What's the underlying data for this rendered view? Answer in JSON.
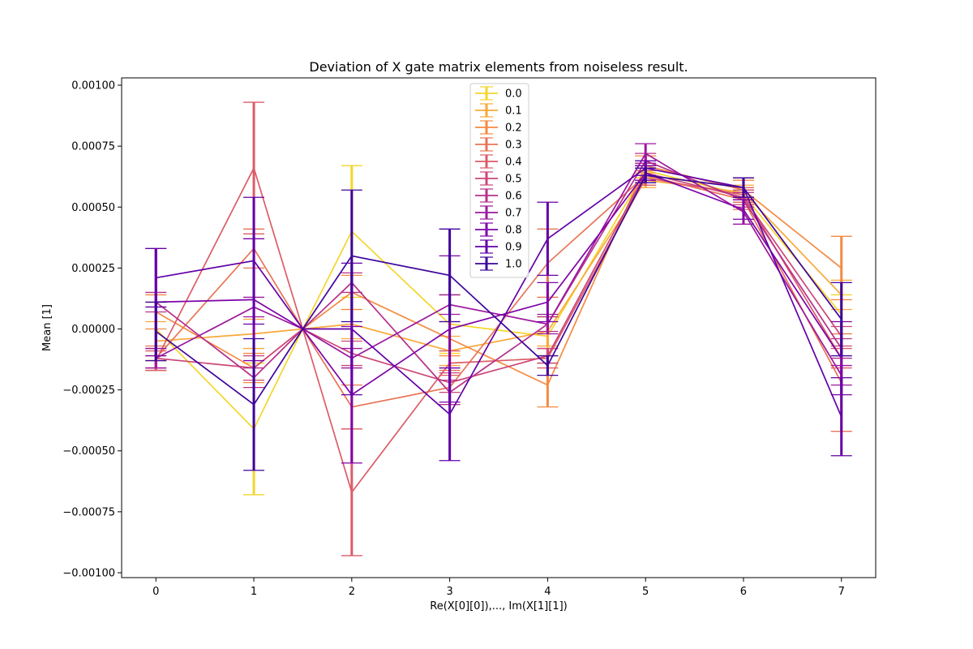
{
  "chart_data": {
    "type": "line",
    "title": "Deviation of X gate matrix elements from noiseless result.",
    "xlabel": "Re(X[0][0]),..., Im(X[1][1])",
    "ylabel": "Mean [1]",
    "x": [
      0,
      1,
      1.5,
      2,
      3,
      4,
      5,
      6,
      7
    ],
    "xticks": [
      0,
      1,
      2,
      3,
      4,
      5,
      6,
      7
    ],
    "xlim": [
      -0.35,
      7.35
    ],
    "ylim": [
      -0.00102,
      0.00103
    ],
    "yticks": [
      0.001,
      0.00075,
      0.0005,
      0.00025,
      0.0,
      -0.00025,
      -0.0005,
      -0.00075,
      -0.001
    ],
    "ytick_labels": [
      "0.00100",
      "0.00075",
      "0.00050",
      "0.00025",
      "0.00000",
      "−0.00025",
      "−0.00050",
      "−0.00075",
      "−0.00100"
    ],
    "error_bars": "vertical with caps",
    "grid": false,
    "legend_position": "top-center",
    "series": [
      {
        "name": "0.0",
        "color": "#f5d52a",
        "values": [
          0.0,
          -0.00041,
          0.0,
          0.0004,
          2e-05,
          -3e-05,
          0.00065,
          0.00055,
          6e-05
        ],
        "errors": [
          0.00011,
          0.00027,
          0.0,
          0.00027,
          0.00012,
          8e-05,
          3e-05,
          3e-05,
          8e-05
        ]
      },
      {
        "name": "0.1",
        "color": "#f9a93a",
        "values": [
          -5e-05,
          -2e-05,
          0.0,
          2e-05,
          -9e-05,
          -1e-05,
          0.00061,
          0.00056,
          0.00014
        ],
        "errors": [
          8e-05,
          6e-05,
          0.0,
          6e-05,
          6e-05,
          6e-05,
          3e-05,
          3e-05,
          6e-05
        ]
      },
      {
        "name": "0.2",
        "color": "#f48a42",
        "values": [
          7e-05,
          -0.00016,
          0.0,
          0.00015,
          -4e-05,
          -0.00023,
          0.00067,
          0.00057,
          0.00025
        ],
        "errors": [
          7e-05,
          6e-05,
          0.0,
          7e-05,
          7e-05,
          9e-05,
          4e-05,
          4e-05,
          0.00013
        ]
      },
      {
        "name": "0.3",
        "color": "#e87455",
        "values": [
          -0.00012,
          0.00033,
          0.0,
          -0.00032,
          -0.00024,
          0.00027,
          0.00063,
          0.00053,
          -0.00022
        ],
        "errors": [
          5e-05,
          8e-05,
          0.0,
          9e-05,
          7e-05,
          0.00014,
          4e-05,
          4e-05,
          0.0002
        ]
      },
      {
        "name": "0.4",
        "color": "#db5c68",
        "values": [
          -0.00013,
          0.00066,
          0.0,
          -0.00067,
          -0.00014,
          -0.00012,
          0.00062,
          0.00055,
          -0.00012
        ],
        "errors": [
          4e-05,
          0.00027,
          0.0,
          0.00026,
          5e-05,
          4e-05,
          3e-05,
          3e-05,
          4e-05
        ]
      },
      {
        "name": "0.5",
        "color": "#cc4778",
        "values": [
          -0.00012,
          -0.00016,
          0.0,
          -0.0001,
          -0.00022,
          -0.00011,
          0.00064,
          0.00054,
          -3e-05
        ],
        "errors": [
          4e-05,
          5e-05,
          0.0,
          5e-05,
          4e-05,
          3e-05,
          3e-05,
          3e-05,
          4e-05
        ]
      },
      {
        "name": "0.6",
        "color": "#b6308b",
        "values": [
          0.00011,
          -0.0002,
          0.0,
          0.00019,
          -0.00026,
          2e-05,
          0.00069,
          0.00053,
          -8e-05
        ],
        "errors": [
          4e-05,
          4e-05,
          0.0,
          4e-05,
          5e-05,
          3e-05,
          3e-05,
          3e-05,
          4e-05
        ]
      },
      {
        "name": "0.7",
        "color": "#9c179e",
        "values": [
          -0.00012,
          9e-05,
          0.0,
          -0.00012,
          0.0001,
          2e-05,
          0.00072,
          0.00048,
          -0.00019
        ],
        "errors": [
          4e-05,
          4e-05,
          0.0,
          4e-05,
          4e-05,
          4e-05,
          4e-05,
          5e-05,
          4e-05
        ]
      },
      {
        "name": "0.8",
        "color": "#7e03a8",
        "values": [
          0.00011,
          0.00012,
          0.0,
          -0.00027,
          0.0,
          0.00011,
          0.00064,
          0.00049,
          -0.00012
        ],
        "errors": [
          0.00022,
          0.00025,
          0.0,
          0.00028,
          0.0003,
          8e-05,
          3e-05,
          4e-05,
          0.00015
        ]
      },
      {
        "name": "0.9",
        "color": "#6300a7",
        "values": [
          0.00021,
          0.00028,
          0.0,
          0.0,
          -0.00035,
          0.00037,
          0.00066,
          0.00058,
          -0.00036
        ],
        "errors": [
          0.00012,
          0.00026,
          0.0,
          0.00027,
          0.00019,
          0.00015,
          3e-05,
          4e-05,
          0.00016
        ]
      },
      {
        "name": "1.0",
        "color": "#3d049b",
        "values": [
          -1e-05,
          -0.00031,
          0.0,
          0.0003,
          0.00022,
          -0.00015,
          0.00063,
          0.00058,
          4e-05
        ],
        "errors": [
          0.00012,
          0.00027,
          0.0,
          0.00027,
          0.00019,
          4e-05,
          3e-05,
          4e-05,
          0.00015
        ]
      }
    ]
  }
}
